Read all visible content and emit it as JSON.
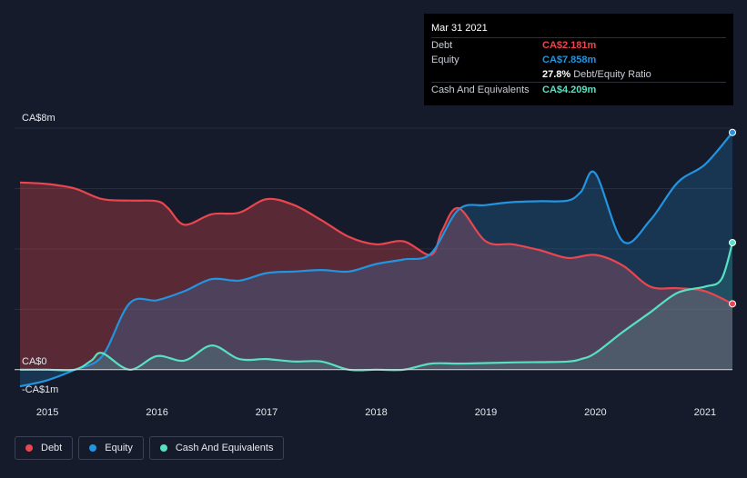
{
  "tooltip": {
    "date": "Mar 31 2021",
    "rows": [
      {
        "label": "Debt",
        "value": "CA$2.181m",
        "color": "#e9464f"
      },
      {
        "label": "Equity",
        "value": "CA$7.858m",
        "color": "#2394df"
      },
      {
        "label": "",
        "value": "27.8%",
        "suffix": "Debt/Equity Ratio",
        "color": "#ffffff"
      },
      {
        "label": "Cash And Equivalents",
        "value": "CA$4.209m",
        "color": "#58e1c1"
      }
    ]
  },
  "legend": [
    {
      "label": "Debt",
      "color": "#e9464f"
    },
    {
      "label": "Equity",
      "color": "#2394df"
    },
    {
      "label": "Cash And Equivalents",
      "color": "#58e1c1"
    }
  ],
  "chart_data": {
    "type": "area",
    "y_tick_labels": [
      "CA$8m",
      "CA$0",
      "-CA$1m"
    ],
    "ylim": [
      -1,
      8
    ],
    "xlim": [
      2014.7,
      2021.25
    ],
    "x_ticks": [
      2015,
      2016,
      2017,
      2018,
      2019,
      2020,
      2021
    ],
    "x_tick_labels": [
      "2015",
      "2016",
      "2017",
      "2018",
      "2019",
      "2020",
      "2021"
    ],
    "grid": true,
    "legend_position": "bottom-left",
    "series": [
      {
        "name": "Debt",
        "color": "#e9464f",
        "x": [
          2014.75,
          2015.0,
          2015.25,
          2015.5,
          2015.75,
          2016.0,
          2016.1,
          2016.25,
          2016.5,
          2016.75,
          2017.0,
          2017.25,
          2017.5,
          2017.75,
          2018.0,
          2018.25,
          2018.5,
          2018.6,
          2018.75,
          2019.0,
          2019.25,
          2019.5,
          2019.75,
          2020.0,
          2020.25,
          2020.5,
          2020.75,
          2021.0,
          2021.25
        ],
        "y": [
          6.2,
          6.15,
          6.0,
          5.65,
          5.6,
          5.58,
          5.35,
          4.8,
          5.15,
          5.2,
          5.65,
          5.45,
          4.95,
          4.4,
          4.15,
          4.25,
          3.8,
          4.6,
          5.35,
          4.25,
          4.15,
          3.95,
          3.7,
          3.8,
          3.45,
          2.75,
          2.7,
          2.6,
          2.181
        ]
      },
      {
        "name": "Equity",
        "color": "#2394df",
        "x": [
          2014.75,
          2015.0,
          2015.25,
          2015.5,
          2015.75,
          2016.0,
          2016.25,
          2016.5,
          2016.75,
          2017.0,
          2017.25,
          2017.5,
          2017.75,
          2018.0,
          2018.25,
          2018.5,
          2018.75,
          2019.0,
          2019.25,
          2019.5,
          2019.75,
          2019.87,
          2020.0,
          2020.25,
          2020.5,
          2020.75,
          2021.0,
          2021.25
        ],
        "y": [
          -0.55,
          -0.35,
          0.0,
          0.45,
          2.2,
          2.3,
          2.6,
          3.0,
          2.95,
          3.2,
          3.25,
          3.3,
          3.25,
          3.5,
          3.65,
          3.85,
          5.3,
          5.45,
          5.55,
          5.58,
          5.6,
          5.9,
          6.5,
          4.25,
          4.95,
          6.2,
          6.8,
          7.858
        ]
      },
      {
        "name": "Cash And Equivalents",
        "color": "#58e1c1",
        "x": [
          2014.75,
          2015.0,
          2015.25,
          2015.4,
          2015.5,
          2015.75,
          2016.0,
          2016.25,
          2016.5,
          2016.75,
          2017.0,
          2017.25,
          2017.5,
          2017.75,
          2018.0,
          2018.25,
          2018.5,
          2018.75,
          2019.0,
          2019.25,
          2019.5,
          2019.75,
          2019.87,
          2020.0,
          2020.25,
          2020.5,
          2020.75,
          2021.0,
          2021.15,
          2021.25
        ],
        "y": [
          0.0,
          0.0,
          0.0,
          0.3,
          0.55,
          0.0,
          0.45,
          0.3,
          0.8,
          0.35,
          0.35,
          0.27,
          0.27,
          0.0,
          0.0,
          0.0,
          0.2,
          0.2,
          0.22,
          0.24,
          0.25,
          0.27,
          0.35,
          0.55,
          1.25,
          1.9,
          2.55,
          2.75,
          3.0,
          4.209
        ]
      }
    ]
  }
}
